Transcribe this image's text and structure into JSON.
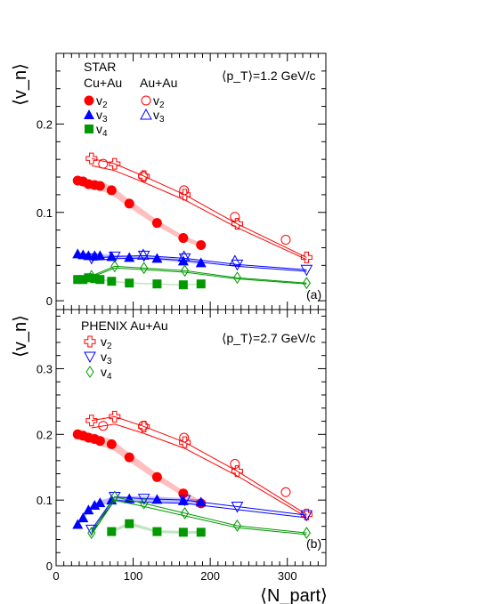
{
  "figure": {
    "x_axis_label": "⟨N_part⟩",
    "x_ticks": [
      "0",
      "100",
      "200",
      "300"
    ],
    "xlim": [
      0,
      350
    ]
  },
  "colors": {
    "v2": "#ff0000",
    "v3": "#0000ff",
    "v4": "#009900"
  },
  "chart_data": [
    {
      "type": "scatter",
      "panel_label": "(a)",
      "ylabel": "⟨v_n⟩",
      "ylim": [
        -0.01,
        0.28
      ],
      "y_ticks": [
        "0",
        "0.1",
        "0.2"
      ],
      "annotation": "⟨p_T⟩=1.2 GeV/c",
      "legend_header": "STAR",
      "legend_groups": {
        "cuau": "Cu+Au",
        "auau": "Au+Au"
      },
      "series": [
        {
          "name": "v2",
          "system": "Cu+Au",
          "color": "#ff0000",
          "marker": "circle-filled",
          "x": [
            28,
            35,
            42,
            50,
            57,
            72,
            95,
            131,
            165,
            188
          ],
          "y": [
            0.136,
            0.135,
            0.132,
            0.131,
            0.13,
            0.125,
            0.11,
            0.088,
            0.071,
            0.063
          ]
        },
        {
          "name": "v3",
          "system": "Cu+Au",
          "color": "#0000ff",
          "marker": "triangle-filled",
          "x": [
            28,
            35,
            42,
            50,
            57,
            72,
            95,
            131,
            165,
            188
          ],
          "y": [
            0.053,
            0.052,
            0.051,
            0.051,
            0.051,
            0.05,
            0.049,
            0.048,
            0.045,
            0.043
          ]
        },
        {
          "name": "v4",
          "system": "Cu+Au",
          "color": "#009900",
          "marker": "square-filled",
          "x": [
            28,
            35,
            42,
            50,
            57,
            72,
            95,
            131,
            165,
            188
          ],
          "y": [
            0.024,
            0.024,
            0.026,
            0.025,
            0.024,
            0.022,
            0.02,
            0.019,
            0.018,
            0.019
          ]
        },
        {
          "name": "v2",
          "system": "Au+Au",
          "color": "#ff0000",
          "marker": "circle-open",
          "x": [
            61,
            113,
            166,
            232,
            298
          ],
          "y": [
            0.155,
            0.141,
            0.125,
            0.095,
            0.069
          ]
        },
        {
          "name": "v3",
          "system": "Au+Au",
          "color": "#0000ff",
          "marker": "triangle-open",
          "x": [
            113,
            166,
            232
          ],
          "y": [
            0.052,
            0.05,
            0.045
          ]
        },
        {
          "name": "PHENIX v2",
          "color": "#ff0000",
          "marker": "cross-open",
          "x": [
            46,
            76,
            114,
            167,
            235,
            325
          ],
          "y": [
            0.161,
            0.155,
            0.141,
            0.12,
            0.087,
            0.049
          ]
        },
        {
          "name": "PHENIX v3",
          "color": "#0000ff",
          "marker": "triangle-down-open",
          "x": [
            46,
            76,
            114,
            167,
            235,
            325
          ],
          "y": [
            0.048,
            0.05,
            0.051,
            0.048,
            0.041,
            0.035
          ]
        },
        {
          "name": "PHENIX v4",
          "color": "#009900",
          "marker": "diamond-open",
          "x": [
            46,
            76,
            114,
            167,
            235,
            325
          ],
          "y": [
            0.028,
            0.039,
            0.037,
            0.034,
            0.026,
            0.02
          ]
        }
      ]
    },
    {
      "type": "scatter",
      "panel_label": "(b)",
      "ylabel": "⟨v_n⟩",
      "ylim": [
        0,
        0.39
      ],
      "y_ticks": [
        "0",
        "0.1",
        "0.2",
        "0.3"
      ],
      "annotation": "⟨p_T⟩=2.7 GeV/c",
      "legend_header": "PHENIX Au+Au",
      "legend_items": [
        "v2",
        "v3",
        "v4"
      ],
      "series": [
        {
          "name": "v2",
          "system": "Cu+Au",
          "color": "#ff0000",
          "marker": "circle-filled",
          "x": [
            28,
            35,
            42,
            50,
            57,
            72,
            95,
            131,
            165,
            188
          ],
          "y": [
            0.2,
            0.198,
            0.195,
            0.193,
            0.19,
            0.185,
            0.165,
            0.135,
            0.11,
            0.095
          ]
        },
        {
          "name": "v3",
          "system": "Cu+Au",
          "color": "#0000ff",
          "marker": "triangle-filled",
          "x": [
            28,
            35,
            42,
            50,
            57,
            72,
            95,
            131,
            165,
            188
          ],
          "y": [
            0.063,
            0.073,
            0.085,
            0.092,
            0.096,
            0.1,
            0.102,
            0.101,
            0.099,
            0.097
          ]
        },
        {
          "name": "v4",
          "system": "Cu+Au",
          "color": "#009900",
          "marker": "square-filled",
          "x": [
            72,
            95,
            131,
            165,
            188
          ],
          "y": [
            0.052,
            0.064,
            0.052,
            0.051,
            0.051
          ]
        },
        {
          "name": "v2",
          "system": "Au+Au",
          "color": "#ff0000",
          "marker": "circle-open",
          "x": [
            61,
            113,
            166,
            232,
            298
          ],
          "y": [
            0.213,
            0.213,
            0.195,
            0.155,
            0.112
          ]
        },
        {
          "name": "PHENIX v2",
          "color": "#ff0000",
          "marker": "cross-open",
          "x": [
            46,
            76,
            114,
            167,
            235,
            325
          ],
          "y": [
            0.221,
            0.227,
            0.212,
            0.188,
            0.144,
            0.078
          ]
        },
        {
          "name": "PHENIX v3",
          "color": "#0000ff",
          "marker": "triangle-down-open",
          "x": [
            46,
            76,
            114,
            167,
            235,
            325
          ],
          "y": [
            0.055,
            0.105,
            0.102,
            0.1,
            0.09,
            0.077
          ]
        },
        {
          "name": "PHENIX v4",
          "color": "#009900",
          "marker": "diamond-open",
          "x": [
            46,
            76,
            114,
            167,
            235,
            325
          ],
          "y": [
            0.05,
            0.105,
            0.095,
            0.08,
            0.061,
            0.05
          ]
        }
      ]
    }
  ]
}
